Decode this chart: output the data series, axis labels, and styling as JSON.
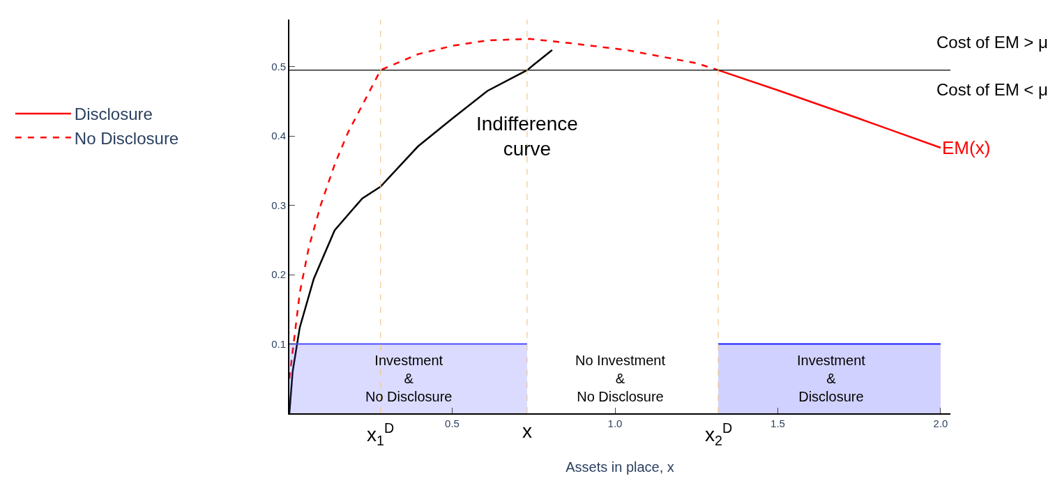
{
  "chart_data": {
    "type": "line",
    "xlabel": "Assets in place, x",
    "xlim": [
      0,
      2.03
    ],
    "ylim": [
      0,
      0.568
    ],
    "xticks": [
      {
        "value": 0.5,
        "label": "0.5"
      },
      {
        "value": 1.0,
        "label": "1.0"
      },
      {
        "value": 1.5,
        "label": "1.5"
      },
      {
        "value": 2.0,
        "label": "2.0"
      }
    ],
    "yticks": [
      0.1,
      0.2,
      0.3,
      0.4,
      0.5
    ],
    "legend": "left",
    "marker": "none",
    "series": [
      {
        "name": "Disclosure",
        "color": "#ff0000",
        "line_style": "solid",
        "x": [
          1.317,
          1.5,
          1.75,
          2.0
        ],
        "values": [
          0.495,
          0.466,
          0.425,
          0.383
        ]
      },
      {
        "name": "No Disclosure",
        "color": "#ff0000",
        "line_style": "dashed",
        "x": [
          0.0,
          0.032,
          0.06,
          0.096,
          0.14,
          0.18,
          0.23,
          0.28,
          0.395,
          0.5,
          0.61,
          0.74,
          0.86,
          1.035,
          1.25,
          1.317
        ],
        "values": [
          0.05,
          0.174,
          0.24,
          0.3,
          0.36,
          0.405,
          0.45,
          0.495,
          0.518,
          0.53,
          0.538,
          0.54,
          0.534,
          0.524,
          0.505,
          0.495
        ]
      },
      {
        "color": "#000000",
        "line_style": "solid",
        "x": [
          0.0,
          0.01,
          0.032,
          0.075,
          0.139,
          0.224,
          0.28,
          0.395,
          0.5,
          0.608,
          0.73,
          0.807
        ],
        "values": [
          0.0,
          0.06,
          0.124,
          0.194,
          0.264,
          0.31,
          0.327,
          0.385,
          0.425,
          0.465,
          0.495,
          0.524
        ]
      },
      {
        "type": "area",
        "color": "#4a4aff",
        "x": [
          0.0,
          0.73
        ],
        "values": [
          0.1,
          0.1
        ]
      },
      {
        "type": "area",
        "color": "#1a1aff",
        "x": [
          1.317,
          2.0
        ],
        "values": [
          0.1,
          0.1
        ]
      }
    ],
    "ref_lines": [
      {
        "axis": "y",
        "value": 0.495,
        "color": "#000000",
        "line_style": "solid"
      },
      {
        "axis": "x",
        "value": 0.28,
        "label": "x$_{1}$$^{D}$",
        "color": "#f0c890",
        "line_style": "dashed"
      },
      {
        "axis": "x",
        "value": 0.73,
        "label": "x",
        "color": "#f0c890",
        "line_style": "dashed"
      },
      {
        "axis": "x",
        "value": 1.317,
        "label": "x$_{2}$$^{D}$",
        "color": "#f0c890",
        "line_style": "dashed"
      }
    ],
    "annotations": [
      "Cost of EM > μ",
      "Cost of EM < μ",
      {
        "text": "EM(x)",
        "x": 2.0,
        "y": 0.383
      },
      {
        "text": "Indifference\ncurve",
        "x": 0.73,
        "y": 0.4
      },
      "Investment\n&\nNo Disclosure",
      "No Investment\n&\nNo Disclosure",
      "Investment\n&\nDisclosure"
    ]
  }
}
